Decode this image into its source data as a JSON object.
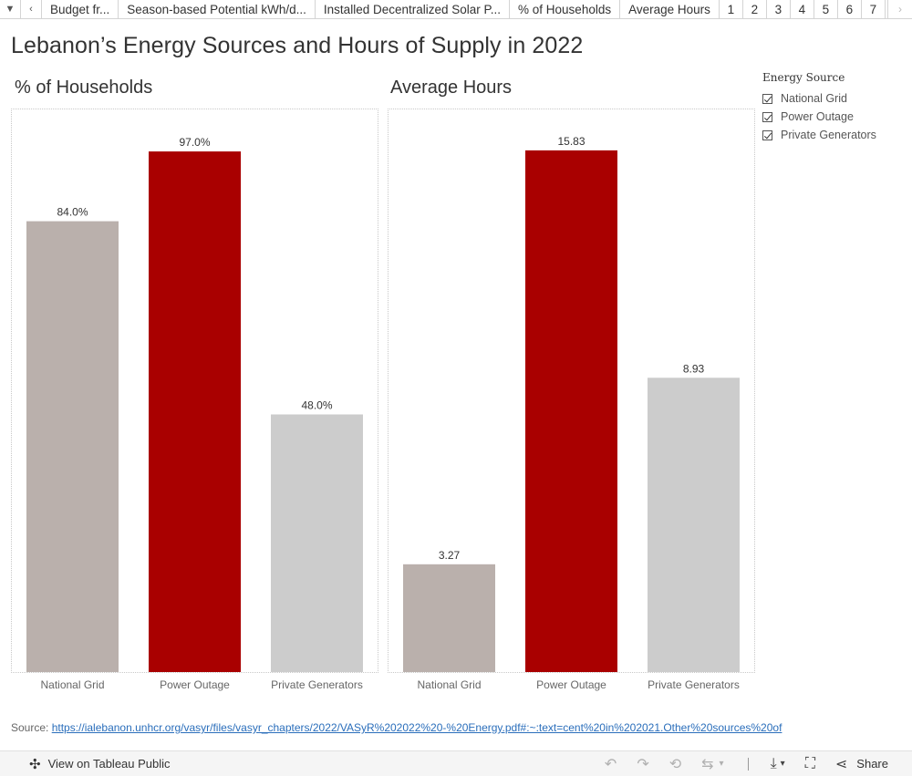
{
  "tabs": {
    "items": [
      "Budget fr...",
      "Season-based Potential kWh/d...",
      "Installed Decentralized Solar P...",
      "% of Households",
      "Average Hours"
    ],
    "pages": [
      "1",
      "2",
      "3",
      "4",
      "5",
      "6",
      "7"
    ],
    "active_page": "1"
  },
  "title": "Lebanon’s Energy Sources and Hours of Supply in 2022",
  "legend": {
    "title": "Energy Source",
    "items": [
      "National Grid",
      "Power Outage",
      "Private Generators"
    ]
  },
  "colors": {
    "National Grid": "#bab0ac",
    "Power Outage": "#a90000",
    "Private Generators": "#cccccc"
  },
  "chart_data": [
    {
      "type": "bar",
      "title": "% of Households",
      "categories": [
        "National Grid",
        "Power Outage",
        "Private Generators"
      ],
      "values": [
        84.0,
        97.0,
        48.0
      ],
      "labels": [
        "84.0%",
        "97.0%",
        "48.0%"
      ],
      "ylim": [
        0,
        105
      ],
      "grid": false
    },
    {
      "type": "bar",
      "title": "Average Hours",
      "categories": [
        "National Grid",
        "Power Outage",
        "Private Generators"
      ],
      "values": [
        3.27,
        15.83,
        8.93
      ],
      "labels": [
        "3.27",
        "15.83",
        "8.93"
      ],
      "ylim": [
        0,
        17.1
      ],
      "grid": false
    }
  ],
  "source": {
    "prefix": "Source: ",
    "url": "https://ialebanon.unhcr.org/vasyr/files/vasyr_chapters/2022/VASyR%202022%20-%20Energy.pdf#:~:text=cent%20in%202021.Other%20sources%20of"
  },
  "toolbar": {
    "view_label": "View on Tableau Public",
    "share_label": "Share"
  }
}
